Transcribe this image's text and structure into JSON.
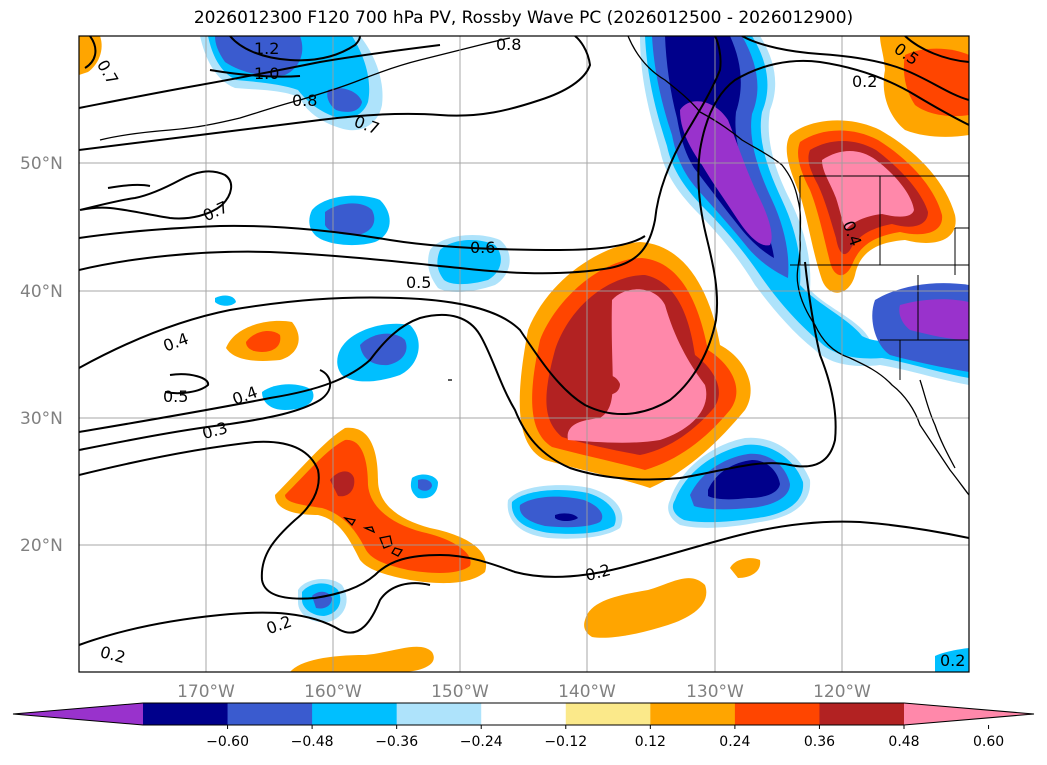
{
  "title": "2026012300 F120 700 hPa PV, Rossby Wave PC (2026012500 - 2026012900)",
  "map": {
    "lat_ticks": [
      {
        "label": "50°N",
        "lat": 50
      },
      {
        "label": "40°N",
        "lat": 40
      },
      {
        "label": "30°N",
        "lat": 30
      },
      {
        "label": "20°N",
        "lat": 20
      }
    ],
    "lon_ticks": [
      {
        "label": "170°W",
        "lon": -170
      },
      {
        "label": "160°W",
        "lon": -160
      },
      {
        "label": "150°W",
        "lon": -150
      },
      {
        "label": "140°W",
        "lon": -140
      },
      {
        "label": "130°W",
        "lon": -130
      },
      {
        "label": "120°W",
        "lon": -120
      }
    ],
    "extent": {
      "lon_min": -180,
      "lon_max": -110,
      "lat_min": 10,
      "lat_max": 60
    },
    "contour_labels": [
      "1.2",
      "1.0",
      "0.8",
      "0.8",
      "0.7",
      "0.7",
      "0.7",
      "0.6",
      "0.5",
      "0.5",
      "0.4",
      "0.4",
      "0.4",
      "0.5",
      "0.3",
      "0.2",
      "0.2",
      "0.2",
      "0.2",
      "0.5",
      "0.4",
      "0.2"
    ]
  },
  "colorbar": {
    "ticks": [
      "−0.60",
      "−0.48",
      "−0.36",
      "−0.24",
      "−0.12",
      "0.12",
      "0.24",
      "0.36",
      "0.48",
      "0.60"
    ],
    "colors": [
      "#9932cc",
      "#00008b",
      "#3a5bcf",
      "#00bfff",
      "#aee3fb",
      "#ffffff",
      "#fbe98a",
      "#ffa500",
      "#ff4500",
      "#b22222",
      "#ff88aa"
    ]
  }
}
